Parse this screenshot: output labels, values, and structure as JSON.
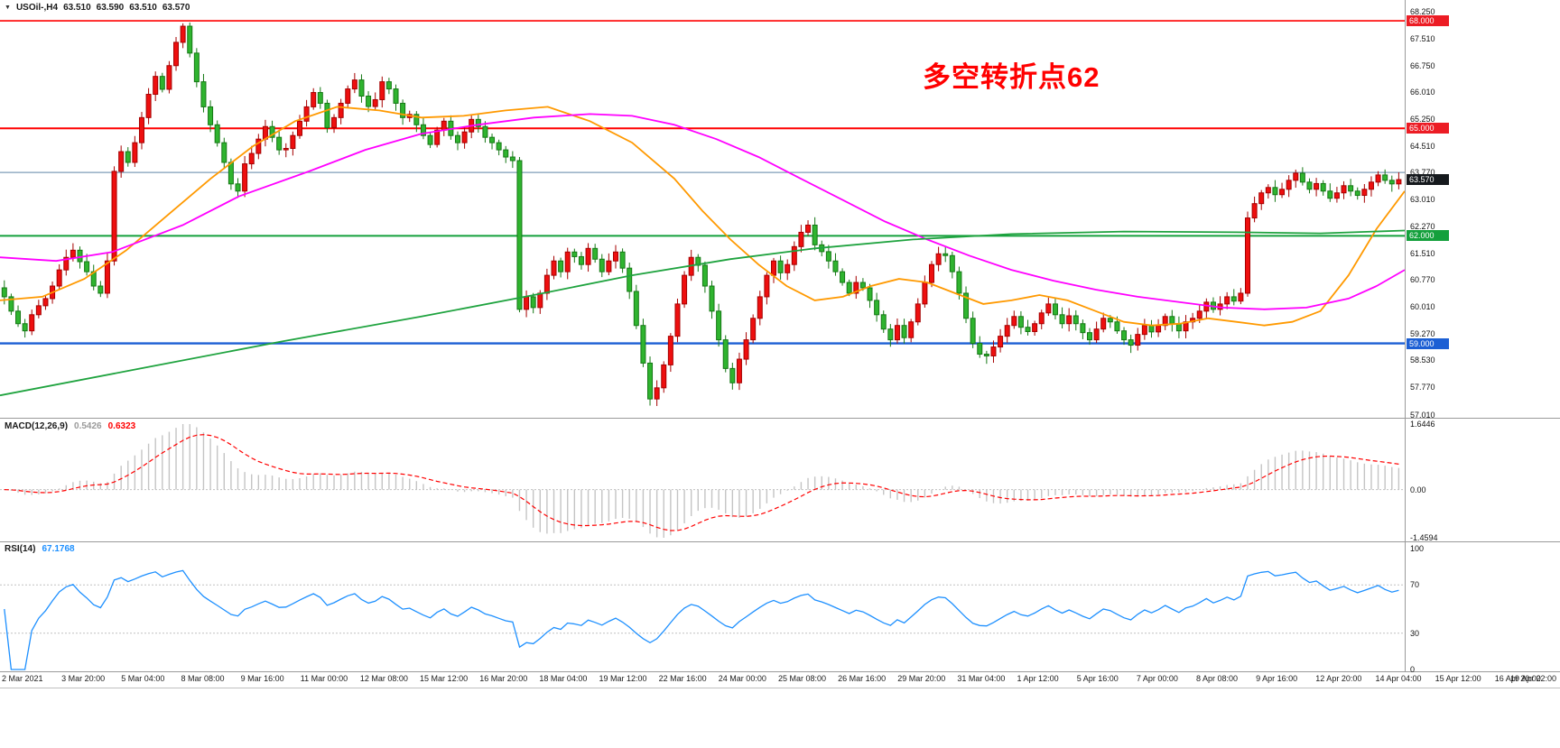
{
  "title": {
    "menu_icon": "▼",
    "symbol": "USOil-,H4",
    "open": "63.510",
    "high": "63.590",
    "low": "63.510",
    "close": "63.570"
  },
  "annotation": {
    "text": "多空转折点62",
    "color": "#FF0000"
  },
  "chart_data": [
    {
      "type": "candlestick",
      "symbol": "USOil-",
      "timeframe": "H4",
      "current_ohlc": {
        "open": 63.51,
        "high": 63.59,
        "low": 63.51,
        "close": 63.57
      },
      "last_price": 63.57,
      "y_range": [
        56.95,
        68.38
      ],
      "first_open": 60.55,
      "closes": [
        60.3,
        59.9,
        59.55,
        59.35,
        59.8,
        60.05,
        60.25,
        60.6,
        61.05,
        61.4,
        61.6,
        61.28,
        61.0,
        60.6,
        60.4,
        61.3,
        63.8,
        64.35,
        64.05,
        64.6,
        65.3,
        65.95,
        66.45,
        66.09,
        66.75,
        67.4,
        67.85,
        67.1,
        66.3,
        65.6,
        65.1,
        64.6,
        64.05,
        63.45,
        63.25,
        64.01,
        64.3,
        64.7,
        65.05,
        64.75,
        64.4,
        64.44,
        64.8,
        65.2,
        65.6,
        66.0,
        65.7,
        65.02,
        65.3,
        65.7,
        66.1,
        66.35,
        65.9,
        65.61,
        65.8,
        66.3,
        66.1,
        65.7,
        65.3,
        65.39,
        65.1,
        64.8,
        64.55,
        64.95,
        65.2,
        64.8,
        64.6,
        64.9,
        65.25,
        65.05,
        64.75,
        64.6,
        64.4,
        64.2,
        64.1,
        59.95,
        60.3,
        60.0,
        60.4,
        60.9,
        61.3,
        61.0,
        61.55,
        61.42,
        61.2,
        61.65,
        61.35,
        61.0,
        61.3,
        61.55,
        61.1,
        60.45,
        59.5,
        58.45,
        57.45,
        57.76,
        58.4,
        59.2,
        60.1,
        60.9,
        61.4,
        61.18,
        60.6,
        59.9,
        59.1,
        58.3,
        57.9,
        58.56,
        59.1,
        59.7,
        60.3,
        60.9,
        61.3,
        60.97,
        61.2,
        61.7,
        62.1,
        62.3,
        61.75,
        61.56,
        61.3,
        61.0,
        60.7,
        60.4,
        60.7,
        60.55,
        60.2,
        59.8,
        59.4,
        59.1,
        59.5,
        59.16,
        59.6,
        60.1,
        60.7,
        61.2,
        61.5,
        61.45,
        61.0,
        60.4,
        59.7,
        59.0,
        58.7,
        58.65,
        58.9,
        59.2,
        59.5,
        59.75,
        59.45,
        59.33,
        59.55,
        59.85,
        60.1,
        59.8,
        59.55,
        59.77,
        59.55,
        59.3,
        59.1,
        59.4,
        59.7,
        59.6,
        59.35,
        59.1,
        58.95,
        59.25,
        59.5,
        59.32,
        59.5,
        59.75,
        59.55,
        59.35,
        59.6,
        59.7,
        59.9,
        60.15,
        59.95,
        60.1,
        60.3,
        60.18,
        60.4,
        62.5,
        62.9,
        63.2,
        63.35,
        63.15,
        63.3,
        63.55,
        63.75,
        63.5,
        63.3,
        63.46,
        63.25,
        63.05,
        63.2,
        63.4,
        63.25,
        63.13,
        63.3,
        63.5,
        63.7,
        63.55,
        63.45,
        63.57
      ],
      "colors": {
        "up": "#EE0F0F",
        "up_dark": "#A50000",
        "down": "#2FB42F",
        "down_dark": "#157815"
      },
      "levels": [
        {
          "price": 68.0,
          "color": "#FF0000",
          "width": 1.6
        },
        {
          "price": 65.0,
          "color": "#FF0000",
          "width": 2
        },
        {
          "price": 63.77,
          "color": "#7F9DB9",
          "width": 1.2
        },
        {
          "price": 62.0,
          "color": "#14A03C",
          "width": 2
        },
        {
          "price": 59.0,
          "color": "#1C5FD4",
          "width": 2.4
        }
      ],
      "badges": [
        {
          "text": "68.000",
          "bg": "#EC1C24"
        },
        {
          "text": "65.000",
          "bg": "#EC1C24"
        },
        {
          "text": "63.570",
          "bg": "#15191D"
        },
        {
          "text": "62.000",
          "bg": "#14A03C"
        },
        {
          "text": "59.000",
          "bg": "#1C5FD4"
        }
      ],
      "y_labels": [
        "68.250",
        "67.510",
        "66.750",
        "66.010",
        "65.250",
        "64.510",
        "63.770",
        "63.010",
        "62.270",
        "61.510",
        "60.770",
        "60.010",
        "59.270",
        "58.530",
        "57.770",
        "57.010"
      ],
      "x_labels": [
        "2 Mar 2021",
        "3 Mar 20:00",
        "5 Mar 04:00",
        "8 Mar 08:00",
        "9 Mar 16:00",
        "11 Mar 00:00",
        "12 Mar 08:00",
        "15 Mar 12:00",
        "16 Mar 20:00",
        "18 Mar 04:00",
        "19 Mar 12:00",
        "22 Mar 16:00",
        "24 Mar 00:00",
        "25 Mar 08:00",
        "26 Mar 16:00",
        "29 Mar 20:00",
        "31 Mar 04:00",
        "1 Apr 12:00",
        "5 Apr 16:00",
        "7 Apr 00:00",
        "8 Apr 08:00",
        "9 Apr 16:00",
        "12 Apr 20:00",
        "14 Apr 04:00",
        "15 Apr 12:00",
        "16 Apr 20:00",
        "19 Apr 22:00"
      ],
      "moving_averages": [
        {
          "name": "ma-fast-orange",
          "color": "#FF9900",
          "points": [
            [
              0,
              60.2
            ],
            [
              0.03,
              60.3
            ],
            [
              0.06,
              60.8
            ],
            [
              0.09,
              61.6
            ],
            [
              0.12,
              62.6
            ],
            [
              0.15,
              63.6
            ],
            [
              0.18,
              64.5
            ],
            [
              0.21,
              65.2
            ],
            [
              0.24,
              65.6
            ],
            [
              0.27,
              65.5
            ],
            [
              0.3,
              65.3
            ],
            [
              0.33,
              65.35
            ],
            [
              0.36,
              65.5
            ],
            [
              0.39,
              65.6
            ],
            [
              0.42,
              65.2
            ],
            [
              0.45,
              64.6
            ],
            [
              0.48,
              63.6
            ],
            [
              0.5,
              62.7
            ],
            [
              0.52,
              61.9
            ],
            [
              0.54,
              61.2
            ],
            [
              0.56,
              60.6
            ],
            [
              0.58,
              60.2
            ],
            [
              0.6,
              60.3
            ],
            [
              0.62,
              60.6
            ],
            [
              0.64,
              60.8
            ],
            [
              0.66,
              60.7
            ],
            [
              0.68,
              60.4
            ],
            [
              0.7,
              60.1
            ],
            [
              0.72,
              60.2
            ],
            [
              0.74,
              60.35
            ],
            [
              0.76,
              60.2
            ],
            [
              0.78,
              59.9
            ],
            [
              0.8,
              59.6
            ],
            [
              0.82,
              59.5
            ],
            [
              0.84,
              59.55
            ],
            [
              0.86,
              59.7
            ],
            [
              0.88,
              59.6
            ],
            [
              0.9,
              59.5
            ],
            [
              0.92,
              59.6
            ],
            [
              0.94,
              59.9
            ],
            [
              0.96,
              60.9
            ],
            [
              0.98,
              62.2
            ],
            [
              1,
              63.25
            ]
          ]
        },
        {
          "name": "ma-mid-magenta",
          "color": "#FF00FF",
          "points": [
            [
              0,
              61.4
            ],
            [
              0.04,
              61.3
            ],
            [
              0.08,
              61.55
            ],
            [
              0.13,
              62.3
            ],
            [
              0.17,
              63.1
            ],
            [
              0.22,
              63.8
            ],
            [
              0.26,
              64.4
            ],
            [
              0.3,
              64.85
            ],
            [
              0.34,
              65.1
            ],
            [
              0.38,
              65.3
            ],
            [
              0.42,
              65.4
            ],
            [
              0.45,
              65.35
            ],
            [
              0.48,
              65.1
            ],
            [
              0.51,
              64.7
            ],
            [
              0.54,
              64.2
            ],
            [
              0.57,
              63.6
            ],
            [
              0.6,
              63.0
            ],
            [
              0.63,
              62.4
            ],
            [
              0.66,
              61.9
            ],
            [
              0.69,
              61.45
            ],
            [
              0.72,
              61.05
            ],
            [
              0.75,
              60.75
            ],
            [
              0.78,
              60.5
            ],
            [
              0.81,
              60.3
            ],
            [
              0.84,
              60.15
            ],
            [
              0.87,
              60.0
            ],
            [
              0.9,
              59.95
            ],
            [
              0.93,
              60.0
            ],
            [
              0.96,
              60.25
            ],
            [
              0.98,
              60.6
            ],
            [
              1,
              61.05
            ]
          ]
        },
        {
          "name": "ma-slow-green",
          "color": "#1FA33F",
          "points": [
            [
              0,
              57.55
            ],
            [
              0.1,
              58.3
            ],
            [
              0.2,
              59.05
            ],
            [
              0.3,
              59.75
            ],
            [
              0.38,
              60.35
            ],
            [
              0.45,
              60.9
            ],
            [
              0.52,
              61.35
            ],
            [
              0.58,
              61.65
            ],
            [
              0.65,
              61.9
            ],
            [
              0.72,
              62.05
            ],
            [
              0.8,
              62.12
            ],
            [
              0.88,
              62.1
            ],
            [
              0.94,
              62.07
            ],
            [
              1,
              62.15
            ]
          ]
        }
      ]
    },
    {
      "type": "macd",
      "label": "MACD(12,26,9)",
      "params": {
        "fast": 12,
        "slow": 26,
        "signal": 9
      },
      "main_value": "0.5426",
      "signal_value": "0.6323",
      "scale_labels": [
        "1.6446",
        "0.00",
        "-1.4594"
      ],
      "histogram_color": "#C4C4C4",
      "signal_color": "#FF0000"
    },
    {
      "type": "rsi",
      "label": "RSI(14)",
      "period": 14,
      "value": "67.1768",
      "scale_labels": [
        "100",
        "70",
        "30",
        "0"
      ],
      "level_lines": [
        70,
        30
      ],
      "line_color": "#1E90FF"
    }
  ]
}
